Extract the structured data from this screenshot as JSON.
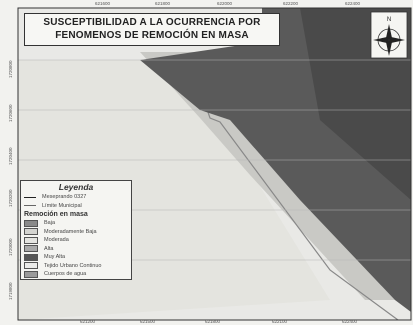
{
  "title": {
    "line1": "SUSCEPTIBILIDAD A LA OCURRENCIA POR",
    "line2": "FENOMENOS DE REMOCIÓN EN MASA"
  },
  "coords": {
    "top": [
      "621600",
      "621800",
      "622000",
      "622200",
      "622400"
    ],
    "bottom": [
      "621200",
      "621500",
      "621800",
      "622100",
      "622400"
    ],
    "left": [
      "1720800",
      "1720600",
      "1720400",
      "1720200",
      "1720000",
      "1719800"
    ]
  },
  "legend": {
    "title": "Leyenda",
    "lines": [
      {
        "label": "Meseprando 0327",
        "color": "#222222"
      },
      {
        "label": "Límite Municipal",
        "color": "#666666"
      }
    ],
    "section": "Remoción en masa",
    "classes": [
      {
        "label": "Baja",
        "color": "#8a8a8a"
      },
      {
        "label": "Moderadamente Baja",
        "color": "#d4d4d0"
      },
      {
        "label": "Moderada",
        "color": "#e4e4e0"
      },
      {
        "label": "Alta",
        "color": "#a9a9a9"
      },
      {
        "label": "Muy Alta",
        "color": "#565656"
      },
      {
        "label": "Tejido Urbano Continuo",
        "color": "#ececea"
      },
      {
        "label": "Cuerpos de agua",
        "color": "#9a9a9a"
      }
    ]
  },
  "north_arrow": {
    "label": "N"
  }
}
